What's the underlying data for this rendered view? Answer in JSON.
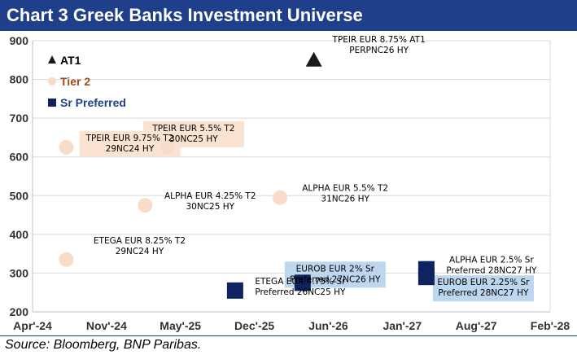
{
  "header": {
    "title": "Chart 3 Greek Banks Investment Universe"
  },
  "footer": {
    "source": "Source: Bloomberg, BNP Paribas."
  },
  "colors": {
    "header_bg": "#1f3f8a",
    "at1": "#1a1a1a",
    "tier2": "#f9dcc8",
    "sr_preferred": "#0f2360",
    "label_box_tier2": "#fbe3d1",
    "label_box_sr": "#bdd7ee"
  },
  "chart_data": {
    "type": "scatter",
    "title": "Chart 3 Greek Banks Investment Universe",
    "xlabel": "",
    "ylabel": "",
    "x_ticks": [
      "Apr'-24",
      "Nov'-24",
      "May'-25",
      "Dec'-25",
      "Jun'-26",
      "Jan'-27",
      "Aug'-27",
      "Feb'-28"
    ],
    "x_range": [
      "2024-04",
      "2028-02"
    ],
    "ylim": [
      200,
      900
    ],
    "y_ticks": [
      "200",
      "300",
      "400",
      "500",
      "600",
      "700",
      "800",
      "900"
    ],
    "grid": true,
    "legend": "top-left",
    "series": [
      {
        "name": "AT1",
        "marker": "triangle",
        "points": [
          {
            "x": "2026-05",
            "y": 850,
            "label": [
              "TPEIR EUR 8.75%  AT1",
              "PERPNC26 HY"
            ]
          }
        ]
      },
      {
        "name": "Tier 2",
        "marker": "circle",
        "points": [
          {
            "x": "2024-07",
            "y": 625,
            "label": [
              "TPEIR EUR 9.75%  T2",
              "29NC24 HY"
            ]
          },
          {
            "x": "2025-04",
            "y": 625,
            "label": [
              "TPEIR EUR 5.5%  T2",
              "30NC25 HY"
            ]
          },
          {
            "x": "2025-02",
            "y": 475,
            "label": [
              "ALPHA EUR 4.25%  T2",
              "30NC25 HY"
            ]
          },
          {
            "x": "2026-02",
            "y": 495,
            "label": [
              "ALPHA EUR 5.5%  T2",
              "31NC26 HY"
            ]
          },
          {
            "x": "2024-07",
            "y": 335,
            "label": [
              "ETEGA EUR 8.25%  T2",
              "29NC24 HY"
            ]
          }
        ]
      },
      {
        "name": "Sr Preferred",
        "marker": "square",
        "points": [
          {
            "x": "2025-10",
            "y": 255,
            "label": [
              "ETEGA EUR 4.75%  Sr",
              "Preferred 26NC25 HY"
            ]
          },
          {
            "x": "2026-04",
            "y": 275,
            "label": [
              "EUROB EUR 2%  Sr",
              "Preferred 27NC26 HY"
            ]
          },
          {
            "x": "2027-03",
            "y": 310,
            "label": [
              "ALPHA EUR 2.5%  Sr",
              "Preferred 28NC27 HY"
            ]
          },
          {
            "x": "2027-03",
            "y": 290,
            "label": [
              "EUROB EUR 2.25%  Sr",
              "Preferred 28NC27 HY"
            ]
          }
        ]
      }
    ]
  }
}
